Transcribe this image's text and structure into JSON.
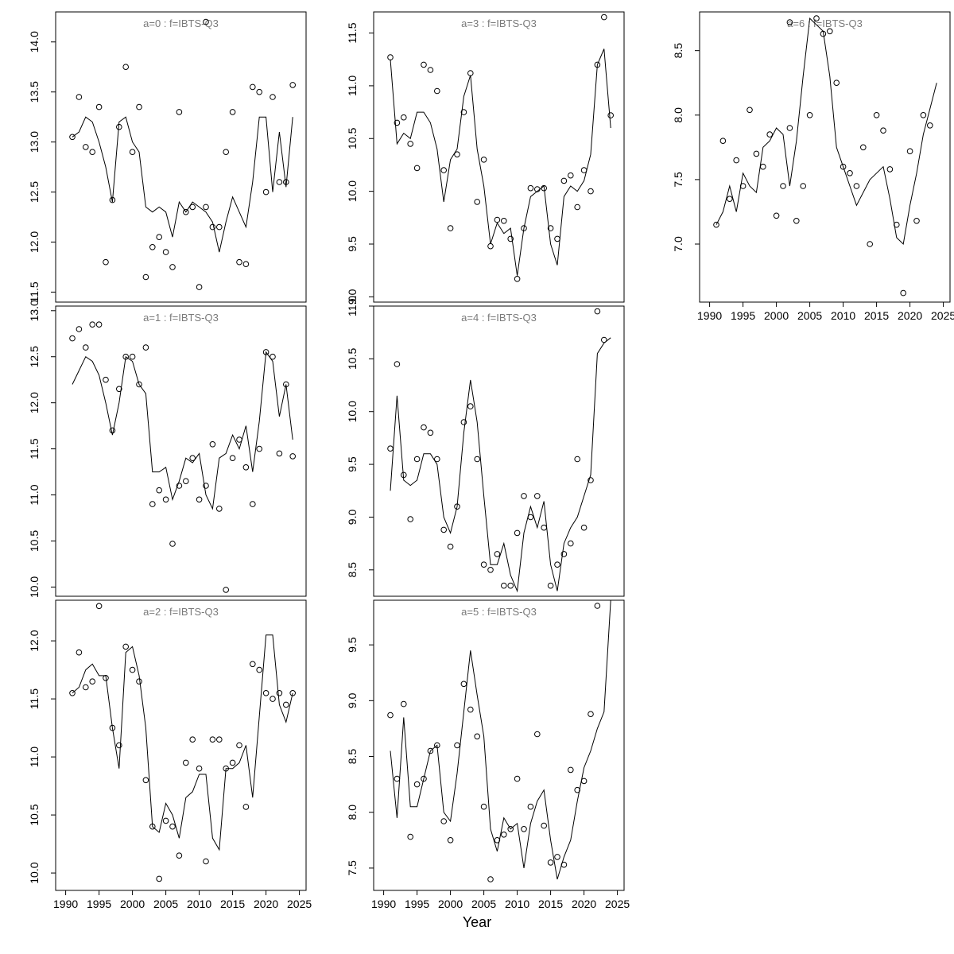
{
  "figure": {
    "xlabel": "Year",
    "x_years": [
      1991,
      1992,
      1993,
      1994,
      1995,
      1996,
      1997,
      1998,
      1999,
      2000,
      2001,
      2002,
      2003,
      2004,
      2005,
      2006,
      2007,
      2008,
      2009,
      2010,
      2011,
      2012,
      2013,
      2014,
      2015,
      2016,
      2017,
      2018,
      2019,
      2020,
      2021,
      2022,
      2023,
      2024
    ],
    "xticks": [
      1990,
      1995,
      2000,
      2005,
      2010,
      2015,
      2020,
      2025
    ],
    "xlim": [
      1988.5,
      2026
    ],
    "colors": {
      "line": "#000000",
      "point": "#000000",
      "title": "#7a7a7a",
      "axis": "#000000",
      "background": "#ffffff"
    }
  },
  "chart_data": [
    {
      "type": "scatter",
      "title": "a=0 : f=IBTS-Q3",
      "grid_pos": [
        0,
        0
      ],
      "show_x_axis": false,
      "ylim": [
        11.4,
        14.3
      ],
      "yticks": [
        11.5,
        12.0,
        12.5,
        13.0,
        13.5,
        14.0
      ],
      "series": [
        {
          "name": "observations",
          "type": "points",
          "values": [
            13.05,
            13.45,
            12.95,
            12.9,
            13.35,
            11.8,
            12.42,
            13.15,
            13.75,
            12.9,
            13.35,
            11.65,
            11.95,
            12.05,
            11.9,
            11.75,
            13.3,
            12.3,
            12.35,
            11.55,
            12.35,
            12.15,
            12.15,
            12.9,
            13.3,
            11.8,
            11.78,
            13.55,
            13.5,
            12.5,
            13.45,
            12.6,
            12.6,
            13.57
          ]
        },
        {
          "name": "fitted",
          "type": "line",
          "values": [
            13.05,
            13.1,
            13.25,
            13.2,
            13.0,
            12.75,
            12.4,
            13.2,
            13.25,
            13.0,
            12.9,
            12.35,
            12.3,
            12.35,
            12.3,
            12.05,
            12.4,
            12.3,
            12.4,
            12.35,
            12.3,
            12.2,
            11.9,
            12.2,
            12.45,
            12.3,
            12.15,
            12.6,
            13.25,
            13.25,
            12.5,
            13.1,
            12.55,
            13.25
          ]
        }
      ],
      "extra_points": [
        {
          "x": 2011,
          "y": 14.2
        }
      ]
    },
    {
      "type": "scatter",
      "title": "a=1 : f=IBTS-Q3",
      "grid_pos": [
        1,
        0
      ],
      "show_x_axis": false,
      "ylim": [
        9.9,
        13.05
      ],
      "yticks": [
        10.0,
        10.5,
        11.0,
        11.5,
        12.0,
        12.5,
        13.0
      ],
      "series": [
        {
          "name": "observations",
          "type": "points",
          "values": [
            12.7,
            12.8,
            12.6,
            12.85,
            12.85,
            12.25,
            11.7,
            12.15,
            12.5,
            12.5,
            12.2,
            12.6,
            10.9,
            11.05,
            10.95,
            10.47,
            11.1,
            11.15,
            11.4,
            10.95,
            11.1,
            11.55,
            10.85,
            9.97,
            11.4,
            11.6,
            11.3,
            10.9,
            11.5,
            12.55,
            12.5,
            11.45,
            12.2,
            11.42
          ]
        },
        {
          "name": "fitted",
          "type": "line",
          "values": [
            12.2,
            12.35,
            12.5,
            12.45,
            12.3,
            12.0,
            11.65,
            12.0,
            12.5,
            12.45,
            12.2,
            12.1,
            11.25,
            11.25,
            11.3,
            10.95,
            11.15,
            11.4,
            11.35,
            11.45,
            11.0,
            10.85,
            11.4,
            11.45,
            11.65,
            11.5,
            11.75,
            11.25,
            11.8,
            12.55,
            12.45,
            11.85,
            12.2,
            11.6
          ]
        }
      ],
      "extra_points": []
    },
    {
      "type": "scatter",
      "title": "a=2 : f=IBTS-Q3",
      "grid_pos": [
        2,
        0
      ],
      "show_x_axis": true,
      "ylim": [
        9.85,
        12.35
      ],
      "yticks": [
        10.0,
        10.5,
        11.0,
        11.5,
        12.0
      ],
      "series": [
        {
          "name": "observations",
          "type": "points",
          "values": [
            11.55,
            11.9,
            11.6,
            11.65,
            12.3,
            11.68,
            11.25,
            11.1,
            11.95,
            11.75,
            11.65,
            10.8,
            10.4,
            9.95,
            10.45,
            10.4,
            10.15,
            10.95,
            11.15,
            10.9,
            10.1,
            11.15,
            11.15,
            10.9,
            10.95,
            11.1,
            10.57,
            11.8,
            11.75,
            11.55,
            11.5,
            11.55,
            11.45,
            11.55
          ]
        },
        {
          "name": "fitted",
          "type": "line",
          "values": [
            11.55,
            11.6,
            11.75,
            11.8,
            11.7,
            11.7,
            11.25,
            10.9,
            11.9,
            11.95,
            11.7,
            11.25,
            10.4,
            10.35,
            10.6,
            10.5,
            10.3,
            10.65,
            10.7,
            10.85,
            10.85,
            10.3,
            10.2,
            10.9,
            10.9,
            10.95,
            11.1,
            10.65,
            11.35,
            12.05,
            12.05,
            11.45,
            11.3,
            11.55
          ]
        }
      ],
      "extra_points": []
    },
    {
      "type": "scatter",
      "title": "a=3 : f=IBTS-Q3",
      "grid_pos": [
        0,
        1
      ],
      "show_x_axis": false,
      "ylim": [
        8.95,
        11.7
      ],
      "yticks": [
        9.0,
        9.5,
        10.0,
        10.5,
        11.0,
        11.5
      ],
      "series": [
        {
          "name": "observations",
          "type": "points",
          "values": [
            11.27,
            10.65,
            10.7,
            10.45,
            10.22,
            11.2,
            11.15,
            10.95,
            10.2,
            9.65,
            10.35,
            10.75,
            11.12,
            9.9,
            10.3,
            9.48,
            9.73,
            9.72,
            9.55,
            9.17,
            9.65,
            10.03,
            10.02,
            10.03,
            9.65,
            9.55,
            10.1,
            10.15,
            9.85,
            10.2,
            10.0,
            11.2,
            11.65,
            10.72
          ]
        },
        {
          "name": "fitted",
          "type": "line",
          "values": [
            11.25,
            10.45,
            10.55,
            10.5,
            10.75,
            10.75,
            10.65,
            10.4,
            9.9,
            10.3,
            10.4,
            10.9,
            11.1,
            10.4,
            10.05,
            9.5,
            9.7,
            9.6,
            9.65,
            9.2,
            9.65,
            9.95,
            10.0,
            10.05,
            9.5,
            9.3,
            9.95,
            10.05,
            10.0,
            10.1,
            10.35,
            11.2,
            11.35,
            10.6
          ]
        }
      ],
      "extra_points": []
    },
    {
      "type": "scatter",
      "title": "a=4 : f=IBTS-Q3",
      "grid_pos": [
        1,
        1
      ],
      "show_x_axis": false,
      "ylim": [
        8.25,
        11.0
      ],
      "yticks": [
        8.5,
        9.0,
        9.5,
        10.0,
        10.5,
        11.0
      ],
      "series": [
        {
          "name": "observations",
          "type": "points",
          "values": [
            9.65,
            10.45,
            9.4,
            8.98,
            9.55,
            9.85,
            9.8,
            9.55,
            8.88,
            8.72,
            9.1,
            9.9,
            10.05,
            9.55,
            8.55,
            8.5,
            8.65,
            8.35,
            8.35,
            8.85,
            9.2,
            9.0,
            9.2,
            8.9,
            8.35,
            8.55,
            8.65,
            8.75,
            9.55,
            8.9,
            9.35,
            10.95,
            10.68,
            null
          ]
        },
        {
          "name": "fitted",
          "type": "line",
          "values": [
            9.25,
            10.15,
            9.35,
            9.3,
            9.35,
            9.6,
            9.6,
            9.5,
            9.0,
            8.85,
            9.1,
            9.8,
            10.3,
            9.9,
            9.2,
            8.55,
            8.55,
            8.75,
            8.45,
            8.3,
            8.85,
            9.1,
            8.9,
            9.15,
            8.55,
            8.3,
            8.75,
            8.9,
            9.0,
            9.2,
            9.4,
            10.55,
            10.65,
            10.7
          ]
        }
      ],
      "extra_points": []
    },
    {
      "type": "scatter",
      "title": "a=5 : f=IBTS-Q3",
      "grid_pos": [
        2,
        1
      ],
      "show_x_axis": true,
      "ylim": [
        7.3,
        9.9
      ],
      "yticks": [
        7.5,
        8.0,
        8.5,
        9.0,
        9.5
      ],
      "series": [
        {
          "name": "observations",
          "type": "points",
          "values": [
            8.87,
            8.3,
            8.97,
            7.78,
            8.25,
            8.3,
            8.55,
            8.6,
            7.92,
            7.75,
            8.6,
            9.15,
            8.92,
            8.68,
            8.05,
            7.4,
            7.75,
            7.8,
            7.85,
            8.3,
            7.85,
            8.05,
            8.7,
            7.88,
            7.55,
            7.6,
            7.53,
            8.38,
            8.2,
            8.28,
            8.88,
            9.85,
            null,
            null
          ]
        },
        {
          "name": "fitted",
          "type": "line",
          "values": [
            8.55,
            7.95,
            8.85,
            8.05,
            8.05,
            8.3,
            8.55,
            8.6,
            8.0,
            7.92,
            8.35,
            8.9,
            9.45,
            9.05,
            8.68,
            7.85,
            7.65,
            7.95,
            7.85,
            7.9,
            7.5,
            7.9,
            8.1,
            8.2,
            7.75,
            7.4,
            7.6,
            7.75,
            8.1,
            8.4,
            8.55,
            8.75,
            8.9,
            9.9
          ]
        }
      ],
      "extra_points": []
    },
    {
      "type": "scatter",
      "title": "a=6 : f=IBTS-Q3",
      "grid_pos": [
        0,
        2
      ],
      "show_x_axis": true,
      "ylim": [
        6.55,
        8.8
      ],
      "yticks": [
        7.0,
        7.5,
        8.0,
        8.5
      ],
      "series": [
        {
          "name": "observations",
          "type": "points",
          "values": [
            7.15,
            7.8,
            7.35,
            7.65,
            7.45,
            8.04,
            7.7,
            7.6,
            7.85,
            7.22,
            7.45,
            7.9,
            7.18,
            7.45,
            8.0,
            8.75,
            8.63,
            8.65,
            8.25,
            7.6,
            7.55,
            7.45,
            7.75,
            7.0,
            8.0,
            7.88,
            7.58,
            7.15,
            6.62,
            7.72,
            7.18,
            8.0,
            7.92,
            null
          ]
        },
        {
          "name": "fitted",
          "type": "line",
          "values": [
            7.15,
            7.25,
            7.45,
            7.25,
            7.55,
            7.45,
            7.4,
            7.75,
            7.8,
            7.9,
            7.85,
            7.45,
            7.8,
            8.3,
            8.75,
            8.7,
            8.65,
            8.3,
            7.75,
            7.6,
            7.45,
            7.3,
            7.4,
            7.5,
            7.55,
            7.6,
            7.35,
            7.05,
            7.0,
            7.3,
            7.55,
            7.85,
            8.05,
            8.25
          ]
        }
      ],
      "extra_points": [
        {
          "x": 2002,
          "y": 8.72
        }
      ]
    }
  ]
}
